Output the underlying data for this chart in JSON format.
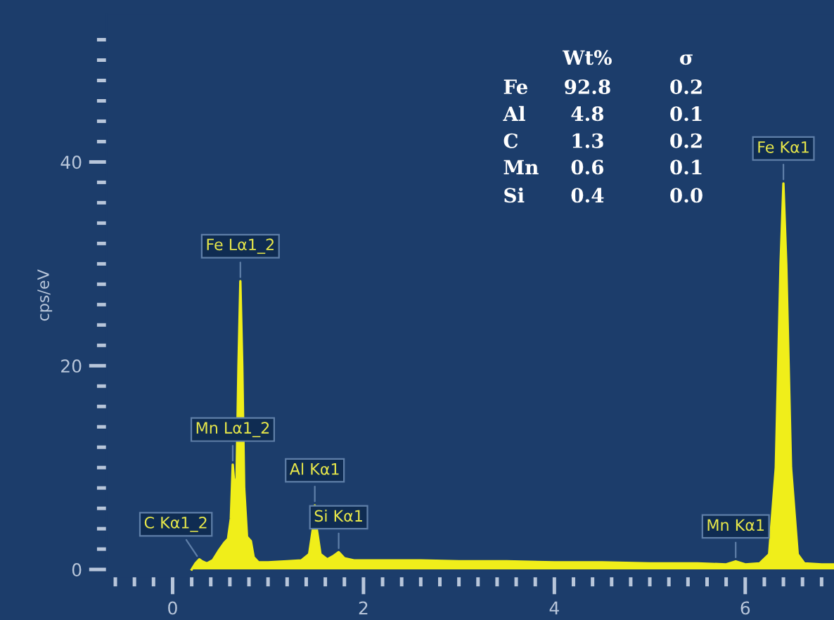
{
  "chart_data": {
    "type": "area",
    "ylabel": "cps/eV",
    "x": [
      0.2,
      0.24,
      0.28,
      0.31,
      0.36,
      0.42,
      0.48,
      0.54,
      0.58,
      0.61,
      0.63,
      0.65,
      0.67,
      0.69,
      0.71,
      0.73,
      0.75,
      0.78,
      0.82,
      0.85,
      0.9,
      1.0,
      1.2,
      1.35,
      1.43,
      1.47,
      1.49,
      1.51,
      1.55,
      1.62,
      1.68,
      1.74,
      1.8,
      1.9,
      2.2,
      2.6,
      3.0,
      3.5,
      4.0,
      4.5,
      5.0,
      5.5,
      5.8,
      5.9,
      6.0,
      6.15,
      6.25,
      6.32,
      6.37,
      6.4,
      6.43,
      6.48,
      6.55,
      6.62,
      6.8,
      6.93
    ],
    "series": [
      {
        "color": "#f0ee1a",
        "values": [
          0,
          0.6,
          1.0,
          0.8,
          0.6,
          0.9,
          1.8,
          2.6,
          3.0,
          5,
          10.3,
          8,
          9,
          20,
          28.3,
          20,
          8,
          3.2,
          2.8,
          1.2,
          0.7,
          0.7,
          0.8,
          0.9,
          1.5,
          4,
          6.3,
          4,
          1.5,
          1.0,
          1.3,
          1.7,
          1.1,
          0.9,
          0.9,
          0.9,
          0.8,
          0.8,
          0.7,
          0.7,
          0.6,
          0.6,
          0.5,
          0.8,
          0.5,
          0.6,
          1.5,
          10,
          30,
          37.9,
          30,
          10,
          1.5,
          0.6,
          0.5,
          0.5
        ]
      }
    ],
    "xlim": [
      -0.69,
      6.93
    ],
    "ylim": [
      -0.7,
      54.5
    ],
    "xticks": [
      {
        "value": -0.6,
        "label": null
      },
      {
        "value": -0.4,
        "label": null
      },
      {
        "value": -0.2,
        "label": null
      },
      0,
      {
        "value": 0.2,
        "label": null
      },
      {
        "value": 0.4,
        "label": null
      },
      {
        "value": 0.6,
        "label": null
      },
      {
        "value": 0.8,
        "label": null
      },
      {
        "value": 1,
        "label": null
      },
      {
        "value": 1.2,
        "label": null
      },
      {
        "value": 1.4,
        "label": null
      },
      {
        "value": 1.6,
        "label": null
      },
      {
        "value": 1.8,
        "label": null
      },
      2,
      {
        "value": 2.2,
        "label": null
      },
      {
        "value": 2.4,
        "label": null
      },
      {
        "value": 2.6,
        "label": null
      },
      {
        "value": 2.8,
        "label": null
      },
      {
        "value": 3,
        "label": null
      },
      {
        "value": 3.2,
        "label": null
      },
      {
        "value": 3.4,
        "label": null
      },
      {
        "value": 3.6,
        "label": null
      },
      {
        "value": 3.8,
        "label": null
      },
      4,
      {
        "value": 4.2,
        "label": null
      },
      {
        "value": 4.4,
        "label": null
      },
      {
        "value": 4.6,
        "label": null
      },
      {
        "value": 4.8,
        "label": null
      },
      {
        "value": 5,
        "label": null
      },
      {
        "value": 5.2,
        "label": null
      },
      {
        "value": 5.4,
        "label": null
      },
      {
        "value": 5.6,
        "label": null
      },
      {
        "value": 5.8,
        "label": null
      },
      6,
      {
        "value": 6.2,
        "label": null
      },
      {
        "value": 6.4,
        "label": null
      },
      {
        "value": 6.6,
        "label": null
      },
      {
        "value": 6.8,
        "label": null
      }
    ],
    "yticks": [
      0,
      {
        "value": 2,
        "label": null
      },
      {
        "value": 4,
        "label": null
      },
      {
        "value": 6,
        "label": null
      },
      {
        "value": 8,
        "label": null
      },
      {
        "value": 10,
        "label": null
      },
      {
        "value": 12,
        "label": null
      },
      {
        "value": 14,
        "label": null
      },
      {
        "value": 16,
        "label": null
      },
      {
        "value": 18,
        "label": null
      },
      20,
      {
        "value": 22,
        "label": null
      },
      {
        "value": 24,
        "label": null
      },
      {
        "value": 26,
        "label": null
      },
      {
        "value": 28,
        "label": null
      },
      {
        "value": 30,
        "label": null
      },
      {
        "value": 32,
        "label": null
      },
      {
        "value": 34,
        "label": null
      },
      {
        "value": 36,
        "label": null
      },
      {
        "value": 38,
        "label": null
      },
      40,
      {
        "value": 42,
        "label": null
      },
      {
        "value": 44,
        "label": null
      },
      {
        "value": 46,
        "label": null
      },
      {
        "value": 48,
        "label": null
      },
      {
        "value": 50,
        "label": null
      },
      {
        "value": 52,
        "label": null
      }
    ],
    "grid": false,
    "legend": false,
    "marker": "none",
    "annotations": [
      {
        "text": "Fe Lα1_2",
        "x": 0.71,
        "y": 28.3
      },
      {
        "text": "Mn Lα1_2",
        "x": 0.63,
        "y": 10.3
      },
      {
        "text": "Al Kα1",
        "x": 1.49,
        "y": 6.3
      },
      {
        "text": "Si Kα1",
        "x": 1.74,
        "y": 1.7
      },
      {
        "text": "C Kα1_2",
        "x": 0.28,
        "y": 1.0
      },
      {
        "text": "Mn Kα1",
        "x": 5.9,
        "y": 0.8
      },
      {
        "text": "Fe Kα1",
        "x": 6.4,
        "y": 37.9
      },
      "Wt%",
      "σ",
      "Fe",
      "92.8",
      "0.2",
      "Al",
      "4.8",
      "0.1",
      "C",
      "1.3",
      "0.2",
      "Mn",
      "0.6",
      "0.1",
      "Si",
      "0.4",
      "0.0"
    ]
  }
}
